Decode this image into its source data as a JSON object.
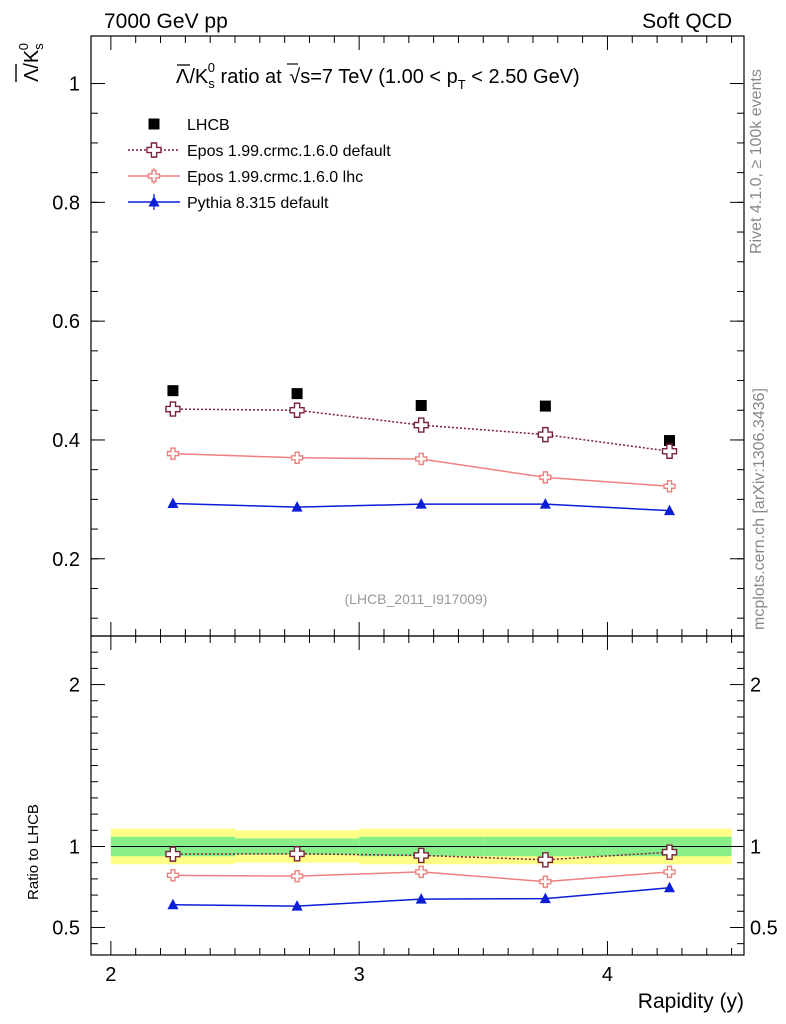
{
  "header": {
    "left": "7000 GeV pp",
    "right": "Soft QCD"
  },
  "side_labels": {
    "rivet": "Rivet 4.1.0, ≥ 100k events",
    "mcplots": "mcplots.cern.ch [arXiv:1306.3436]"
  },
  "chart_data": [
    {
      "type": "line",
      "panel": "main",
      "title_parts": {
        "prefix": "/K",
        "sub": "s",
        "sup": "0",
        "mid": " ratio at ",
        "sqrt": "s",
        "energy": "=7 TeV (1.00 < p",
        "pt_sub": "T",
        "suffix": " < 2.50 GeV)"
      },
      "ylabel_parts": {
        "lambda": "Λ",
        "slash_k": "/K",
        "sub": "s",
        "sup": "0"
      },
      "watermark": "(LHCB_2011_I917009)",
      "xlim": [
        1.92,
        4.55
      ],
      "ylim": [
        0.07,
        1.08
      ],
      "yticks": [
        0.2,
        0.4,
        0.6,
        0.8,
        1
      ],
      "ytick_labels": [
        "0.2",
        "0.4",
        "0.6",
        "0.8",
        "1"
      ],
      "x": [
        2.25,
        2.75,
        3.25,
        3.75,
        4.25
      ],
      "series": [
        {
          "name": "LHCB",
          "marker": "square",
          "color": "#000000",
          "line": "none",
          "values": [
            0.483,
            0.478,
            0.458,
            0.457,
            0.399
          ],
          "errors": [
            0,
            0,
            0,
            0,
            0
          ]
        },
        {
          "name": "Epos 1.99.crmc.1.6.0 default",
          "marker": "open-cross",
          "color": "#7b1f3f",
          "line": "dotted",
          "values": [
            0.452,
            0.45,
            0.425,
            0.409,
            0.381
          ],
          "errors": [
            0.007,
            0.007,
            0.007,
            0.008,
            0.009
          ]
        },
        {
          "name": "Epos 1.99.crmc.1.6.0 lhc",
          "marker": "open-cross-small",
          "color": "#f08080",
          "line": "solid",
          "values": [
            0.377,
            0.37,
            0.368,
            0.337,
            0.322
          ],
          "errors": [
            0.008,
            0.008,
            0.009,
            0.009,
            0.008
          ]
        },
        {
          "name": "Pythia 8.315 default",
          "marker": "triangle",
          "color": "#0a1ed8",
          "line": "solid",
          "values": [
            0.293,
            0.287,
            0.292,
            0.292,
            0.281
          ],
          "errors": [
            0.006,
            0.006,
            0.006,
            0.007,
            0.007
          ]
        }
      ]
    },
    {
      "type": "line",
      "panel": "ratio",
      "ylabel": "Ratio to LHCB",
      "xlabel": "Rapidity (y)",
      "xlim": [
        1.92,
        4.55
      ],
      "ylim": [
        0.33,
        2.3
      ],
      "xticks": [
        2,
        3,
        4
      ],
      "xtick_labels": [
        "2",
        "3",
        "4"
      ],
      "yticks": [
        0.5,
        1,
        2
      ],
      "ytick_labels": [
        "0.5",
        "1",
        "2"
      ],
      "bins": [
        [
          2.0,
          2.5
        ],
        [
          2.5,
          3.0
        ],
        [
          3.0,
          3.5
        ],
        [
          3.5,
          4.0
        ],
        [
          4.0,
          4.5
        ]
      ],
      "band_yellow": [
        [
          0.89,
          1.11
        ],
        [
          0.9,
          1.1
        ],
        [
          0.89,
          1.11
        ],
        [
          0.89,
          1.11
        ],
        [
          0.89,
          1.11
        ]
      ],
      "band_green": [
        [
          0.94,
          1.06
        ],
        [
          0.95,
          1.05
        ],
        [
          0.94,
          1.06
        ],
        [
          0.94,
          1.06
        ],
        [
          0.94,
          1.06
        ]
      ],
      "band_yellow_color": "#ffff88",
      "band_green_color": "#88ee88",
      "x": [
        2.25,
        2.75,
        3.25,
        3.75,
        4.25
      ],
      "series": [
        {
          "name": "Epos 1.99.crmc.1.6.0 default",
          "marker": "open-cross",
          "color": "#7b1f3f",
          "line": "dotted",
          "values": [
            0.953,
            0.955,
            0.945,
            0.918,
            0.965
          ],
          "errors": [
            0.015,
            0.015,
            0.016,
            0.018,
            0.02
          ]
        },
        {
          "name": "Epos 1.99.crmc.1.6.0 lhc",
          "marker": "open-cross-small",
          "color": "#f08080",
          "line": "solid",
          "values": [
            0.822,
            0.817,
            0.843,
            0.783,
            0.843
          ],
          "errors": [
            0.017,
            0.018,
            0.02,
            0.022,
            0.022
          ]
        },
        {
          "name": "Pythia 8.315 default",
          "marker": "triangle",
          "color": "#0a1ed8",
          "line": "solid",
          "values": [
            0.64,
            0.632,
            0.675,
            0.678,
            0.745
          ],
          "errors": [
            0.015,
            0.015,
            0.017,
            0.018,
            0.022
          ]
        }
      ]
    }
  ]
}
